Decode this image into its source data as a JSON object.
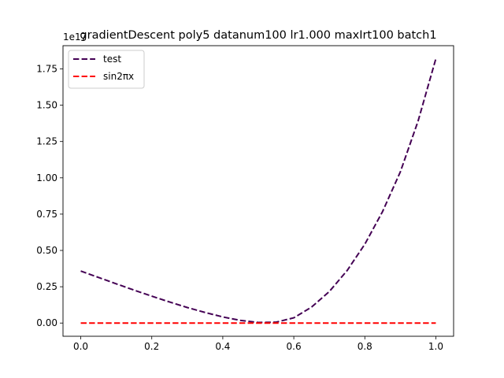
{
  "chart_data": {
    "type": "line",
    "title": "gradientDescent poly5 datanum100 lr1.000 maxIrt100 batch1",
    "xlabel": "",
    "ylabel": "",
    "y_offset_label": "1e17",
    "xlim": [
      -0.05,
      1.05
    ],
    "ylim": [
      -0.091,
      1.91
    ],
    "x_ticks": [
      0.0,
      0.2,
      0.4,
      0.6,
      0.8,
      1.0
    ],
    "x_tick_labels": [
      "0.0",
      "0.2",
      "0.4",
      "0.6",
      "0.8",
      "1.0"
    ],
    "y_ticks": [
      0.0,
      0.25,
      0.5,
      0.75,
      1.0,
      1.25,
      1.5,
      1.75
    ],
    "y_tick_labels": [
      "0.00",
      "0.25",
      "0.50",
      "0.75",
      "1.00",
      "1.25",
      "1.50",
      "1.75"
    ],
    "grid": false,
    "legend_position": "top-left",
    "series": [
      {
        "name": "test",
        "color": "#440154",
        "style": "dashed",
        "x": [
          0.0,
          0.05,
          0.1,
          0.15,
          0.2,
          0.25,
          0.3,
          0.35,
          0.4,
          0.45,
          0.5,
          0.55,
          0.6,
          0.65,
          0.7,
          0.75,
          0.8,
          0.85,
          0.9,
          0.95,
          1.0
        ],
        "values": [
          0.358,
          0.314,
          0.27,
          0.227,
          0.185,
          0.145,
          0.107,
          0.073,
          0.042,
          0.018,
          0.004,
          0.006,
          0.036,
          0.11,
          0.217,
          0.361,
          0.543,
          0.768,
          1.041,
          1.391,
          1.82
        ]
      },
      {
        "name": "sin2πx",
        "color": "#ff0000",
        "style": "dashed",
        "x": [
          0.0,
          1.0
        ],
        "values": [
          0.0,
          0.0
        ]
      }
    ]
  }
}
